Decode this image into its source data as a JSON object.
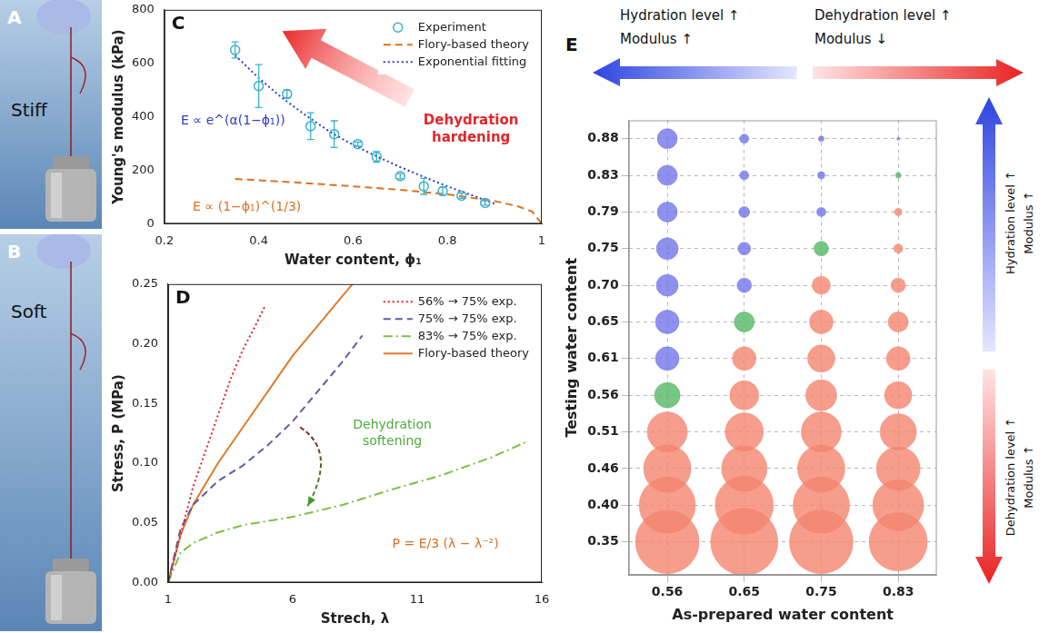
{
  "photos": [
    {
      "panel": "A",
      "label": "Stiff"
    },
    {
      "panel": "B",
      "label": "Soft"
    }
  ],
  "chart_data": [
    {
      "panel": "C",
      "type": "scatter",
      "x_label": "Water content, ϕ₁",
      "y_label": "Young's modulus (kPa)",
      "xlim": [
        0.2,
        1
      ],
      "xticks": [
        0.2,
        0.4,
        0.6,
        0.8,
        1
      ],
      "ylim": [
        0,
        800
      ],
      "yticks": [
        0,
        200,
        400,
        600,
        800
      ],
      "grid": false,
      "legend": "top-right",
      "series": [
        {
          "name": "Experiment",
          "color": "#3ab0d0",
          "marker": "circle",
          "x": [
            0.35,
            0.4,
            0.46,
            0.51,
            0.56,
            0.61,
            0.65,
            0.7,
            0.75,
            0.79,
            0.83,
            0.88
          ],
          "values": [
            650,
            515,
            485,
            365,
            335,
            298,
            250,
            178,
            140,
            122,
            105,
            78
          ],
          "errors": [
            30,
            80,
            15,
            50,
            50,
            8,
            20,
            10,
            30,
            15,
            10,
            8
          ]
        },
        {
          "name": "Flory-based theory",
          "color": "#e07020",
          "line_style": "dashed",
          "x": [
            0.35,
            0.4,
            0.5,
            0.6,
            0.7,
            0.8,
            0.9,
            0.95,
            0.98,
            1
          ],
          "values": [
            168,
            163,
            152,
            140,
            127,
            110,
            85,
            65,
            45,
            0
          ]
        },
        {
          "name": "Exponential fitting",
          "color": "#2b3cc4",
          "line_style": "dotted",
          "x": [
            0.35,
            0.4,
            0.45,
            0.5,
            0.55,
            0.6,
            0.65,
            0.7,
            0.75,
            0.8,
            0.85,
            0.9
          ],
          "values": [
            630,
            545,
            470,
            405,
            345,
            295,
            252,
            212,
            175,
            140,
            108,
            75
          ]
        }
      ],
      "annotations": [
        {
          "text": "Dehydration hardening",
          "color": "#e3262b"
        },
        {
          "text": "E ∝ e^(α(1−ϕ₁))",
          "color": "#2b3cc4"
        },
        {
          "text": "E ∝ (1−ϕ₁)^(1/3)",
          "color": "#e07020"
        }
      ]
    },
    {
      "panel": "D",
      "type": "line",
      "x_label": "Strech, λ",
      "y_label": "Stress, P (MPa)",
      "xlim": [
        1,
        16
      ],
      "xticks": [
        1,
        6,
        11,
        16
      ],
      "ylim": [
        0,
        0.25
      ],
      "yticks": [
        {
          "value": 0,
          "label": "0.00"
        },
        0.05,
        {
          "value": 0.1,
          "label": "0.10"
        },
        0.15,
        {
          "value": 0.2,
          "label": "0.20"
        },
        0.25
      ],
      "grid": false,
      "legend": "top-right",
      "series": [
        {
          "name": "56% → 75% exp.",
          "color": "#e8202a",
          "line_style": "dotted",
          "x": [
            1,
            1.5,
            2,
            2.5,
            3,
            3.5,
            4,
            4.5,
            4.9
          ],
          "values": [
            0,
            0.04,
            0.08,
            0.11,
            0.14,
            0.17,
            0.195,
            0.215,
            0.232
          ]
        },
        {
          "name": "75% → 75% exp.",
          "color": "#5b5ea6",
          "line_style": "dashed",
          "x": [
            1,
            1.5,
            2,
            3,
            4,
            5,
            6,
            7,
            8,
            8.8
          ],
          "values": [
            0,
            0.045,
            0.065,
            0.085,
            0.098,
            0.115,
            0.135,
            0.16,
            0.185,
            0.207
          ]
        },
        {
          "name": "83% → 75% exp.",
          "color": "#7ac143",
          "line_style": "dashdot",
          "x": [
            1,
            1.5,
            2,
            3,
            4,
            6,
            8,
            10,
            12,
            14,
            15.4
          ],
          "values": [
            0,
            0.025,
            0.033,
            0.042,
            0.048,
            0.055,
            0.065,
            0.078,
            0.09,
            0.105,
            0.118
          ]
        },
        {
          "name": "Flory-based theory",
          "color": "#e07a2a",
          "line_style": "solid",
          "x": [
            1,
            1.5,
            2,
            3,
            4,
            5,
            6,
            7,
            8,
            8.4
          ],
          "values": [
            0,
            0.04,
            0.065,
            0.1,
            0.13,
            0.16,
            0.19,
            0.215,
            0.24,
            0.25
          ]
        }
      ],
      "annotations": [
        {
          "text": "Dehydration softening",
          "color": "#4daa3a"
        },
        {
          "text": "P = E/3 (λ − λ⁻²)",
          "color": "#d9701c"
        }
      ]
    },
    {
      "panel": "E",
      "type": "bubble",
      "x_label": "As-prepared water content",
      "y_label": "Testing water content",
      "categories": [
        "0.56",
        "0.65",
        "0.75",
        "0.83"
      ],
      "y_categories": [
        "0.35",
        "0.40",
        "0.46",
        "0.51",
        "0.56",
        "0.61",
        "0.65",
        "0.70",
        "0.75",
        "0.79",
        "0.83",
        "0.88"
      ],
      "grid": true,
      "sizes": [
        [
          35,
          31,
          26,
          22,
          14,
          13,
          13,
          12,
          12,
          11,
          11,
          11
        ],
        [
          37,
          32,
          25,
          21,
          16,
          13,
          11,
          8,
          7,
          6,
          5,
          5
        ],
        [
          35,
          31,
          26,
          22,
          17,
          15,
          13,
          10,
          8,
          5,
          4,
          3
        ],
        [
          32,
          28,
          24,
          20,
          15,
          13,
          11,
          8,
          5,
          4,
          3,
          1.5
        ]
      ],
      "colors": [
        [
          "#f4846f",
          "#f4846f",
          "#f4846f",
          "#f4846f",
          "#55b865",
          "#7276e8",
          "#7276e8",
          "#7276e8",
          "#7276e8",
          "#7276e8",
          "#7276e8",
          "#7276e8"
        ],
        [
          "#f4846f",
          "#f4846f",
          "#f4846f",
          "#f4846f",
          "#f4846f",
          "#f4846f",
          "#55b865",
          "#7276e8",
          "#7276e8",
          "#7276e8",
          "#7276e8",
          "#7276e8"
        ],
        [
          "#f4846f",
          "#f4846f",
          "#f4846f",
          "#f4846f",
          "#f4846f",
          "#f4846f",
          "#f4846f",
          "#f4846f",
          "#55b865",
          "#7276e8",
          "#7276e8",
          "#7276e8"
        ],
        [
          "#f4846f",
          "#f4846f",
          "#f4846f",
          "#f4846f",
          "#f4846f",
          "#f4846f",
          "#f4846f",
          "#f4846f",
          "#f4846f",
          "#f4846f",
          "#55b865",
          "#7276e8"
        ]
      ],
      "annotations": [
        "Hydration level ↑",
        "Modulus ↑",
        "Dehydration level ↑",
        "Modulus ↓",
        "Hydration level ↑",
        "Modulus ↑",
        "Dehydration level ↑",
        "Modulus ↑"
      ]
    }
  ]
}
